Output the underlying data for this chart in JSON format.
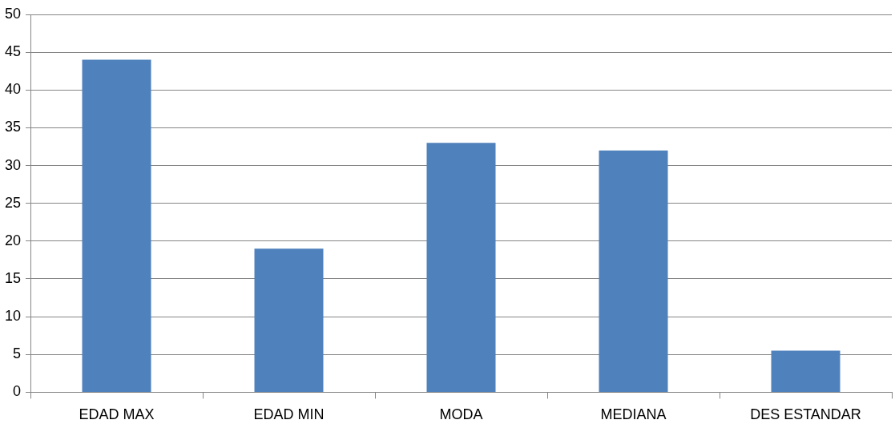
{
  "chart_data": {
    "type": "bar",
    "categories": [
      "EDAD MAX",
      "EDAD MIN",
      "MODA",
      "MEDIANA",
      "DES ESTANDAR"
    ],
    "values": [
      44,
      19,
      33,
      32,
      5.5
    ],
    "color": "#4f81bd",
    "ylim": [
      0,
      50
    ],
    "yticks": [
      0,
      5,
      10,
      15,
      20,
      25,
      30,
      35,
      40,
      45,
      50
    ],
    "grid": "y",
    "legend": false
  }
}
